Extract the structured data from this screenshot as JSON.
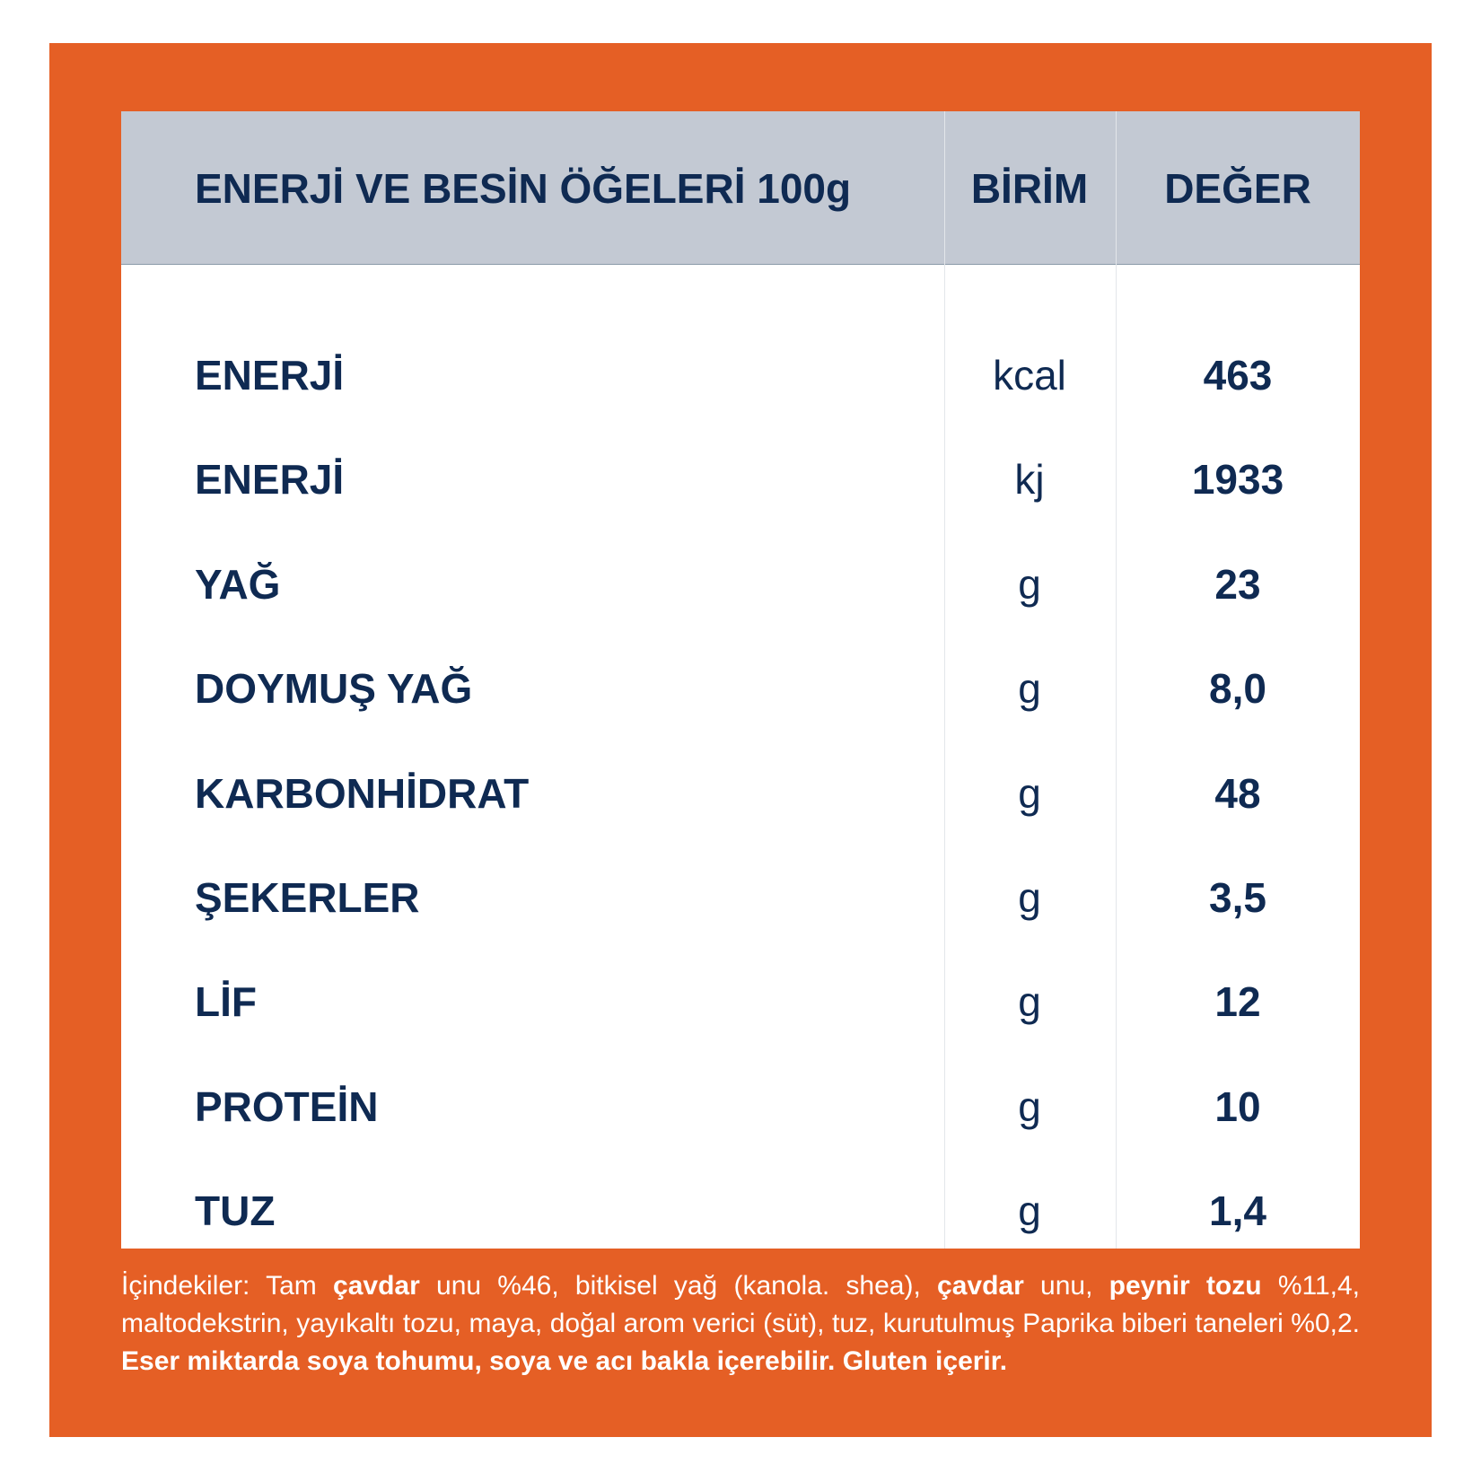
{
  "table": {
    "header": [
      "ENERJİ VE BESİN ÖĞELERİ 100g",
      "BİRİM",
      "DEĞER"
    ],
    "rows": [
      [
        "ENERJİ",
        "kcal",
        "463"
      ],
      [
        "ENERJİ",
        "kj",
        "1933"
      ],
      [
        "YAĞ",
        "g",
        "23"
      ],
      [
        "DOYMUŞ YAĞ",
        "g",
        "8,0"
      ],
      [
        "KARBONHİDRAT",
        "g",
        "48"
      ],
      [
        "ŞEKERLER",
        "g",
        "3,5"
      ],
      [
        "LİF",
        "g",
        "12"
      ],
      [
        "PROTEİN",
        "g",
        "10"
      ],
      [
        "TUZ",
        "g",
        "1,4"
      ]
    ]
  },
  "ingredients": [
    "İçindekiler: Tam ",
    "çavdar",
    " unu %46, bitkisel yağ (kanola. shea), ",
    "çavdar",
    " unu, ",
    "peynir tozu",
    " %11,4, maltodekstrin, yayıkaltı tozu, maya, doğal arom verici (süt), tuz, kurutulmuş Paprika biberi taneleri %0,2. ",
    "Eser miktarda soya tohumu, soya ve acı bakla içerebilir. Gluten içerir."
  ]
}
